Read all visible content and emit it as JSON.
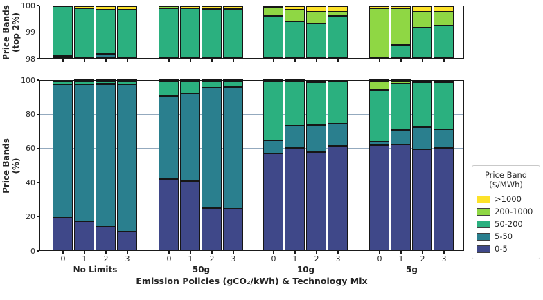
{
  "chart_data": {
    "type": "bar",
    "subtype": "stacked-percentage, two panels sharing x axis (top panel zoomed to 98-100%)",
    "bands": [
      "0-5",
      "5-50",
      "50-200",
      "200-1000",
      ">1000"
    ],
    "band_colors": {
      "0-5": "#3F4889",
      "5-50": "#2A7F8E",
      "50-200": "#2BB07F",
      "200-1000": "#8FD744",
      ">1000": "#FDE22A"
    },
    "xlabel": "Emission Policies (gCO₂/kWh) & Technology Mix",
    "panels": [
      {
        "ylabel_line1": "Price Bands",
        "ylabel_line2": "(top 2%)",
        "ylim": [
          98,
          100
        ],
        "yticks": [
          98,
          99,
          100
        ]
      },
      {
        "ylabel_line1": "Price Bands",
        "ylabel_line2": "(%)",
        "ylim": [
          0,
          100
        ],
        "yticks": [
          0,
          20,
          40,
          60,
          80,
          100
        ]
      }
    ],
    "groups": [
      {
        "label": "No Limits",
        "bars": [
          {
            "label": "0",
            "cumulative_pct": [
              19.0,
              98.07,
              100.0,
              100.0,
              100.0
            ]
          },
          {
            "label": "1",
            "cumulative_pct": [
              17.0,
              97.9,
              99.93,
              99.93,
              100.0
            ]
          },
          {
            "label": "2",
            "cumulative_pct": [
              14.0,
              98.17,
              99.88,
              99.88,
              100.0
            ]
          },
          {
            "label": "3",
            "cumulative_pct": [
              11.0,
              97.85,
              99.88,
              99.88,
              100.0
            ]
          }
        ]
      },
      {
        "label": "50g",
        "bars": [
          {
            "label": "0",
            "cumulative_pct": [
              42.0,
              91.0,
              99.92,
              100.0,
              100.0
            ]
          },
          {
            "label": "1",
            "cumulative_pct": [
              41.0,
              92.5,
              99.93,
              99.93,
              100.0
            ]
          },
          {
            "label": "2",
            "cumulative_pct": [
              25.0,
              96.0,
              99.9,
              99.9,
              100.0
            ]
          },
          {
            "label": "3",
            "cumulative_pct": [
              24.5,
              96.5,
              99.9,
              99.9,
              100.0
            ]
          }
        ]
      },
      {
        "label": "10g",
        "bars": [
          {
            "label": "0",
            "cumulative_pct": [
              57.0,
              65.0,
              99.63,
              99.98,
              100.0
            ]
          },
          {
            "label": "1",
            "cumulative_pct": [
              60.5,
              73.5,
              99.42,
              99.86,
              100.0
            ]
          },
          {
            "label": "2",
            "cumulative_pct": [
              58.0,
              74.0,
              99.33,
              99.78,
              100.0
            ]
          },
          {
            "label": "3",
            "cumulative_pct": [
              61.5,
              74.5,
              99.62,
              99.8,
              100.0
            ]
          }
        ]
      },
      {
        "label": "5g",
        "bars": [
          {
            "label": "0",
            "cumulative_pct": [
              62.0,
              64.0,
              94.5,
              99.93,
              100.0
            ]
          },
          {
            "label": "1",
            "cumulative_pct": [
              62.5,
              71.0,
              98.5,
              99.93,
              100.0
            ]
          },
          {
            "label": "2",
            "cumulative_pct": [
              59.5,
              72.5,
              99.17,
              99.78,
              100.0
            ]
          },
          {
            "label": "3",
            "cumulative_pct": [
              60.5,
              71.5,
              99.26,
              99.78,
              100.0
            ]
          }
        ]
      }
    ],
    "legend": {
      "title_line1": "Price Band",
      "title_line2": "($/MWh)",
      "entries": [
        ">1000",
        "200-1000",
        "50-200",
        "5-50",
        "0-5"
      ]
    }
  }
}
